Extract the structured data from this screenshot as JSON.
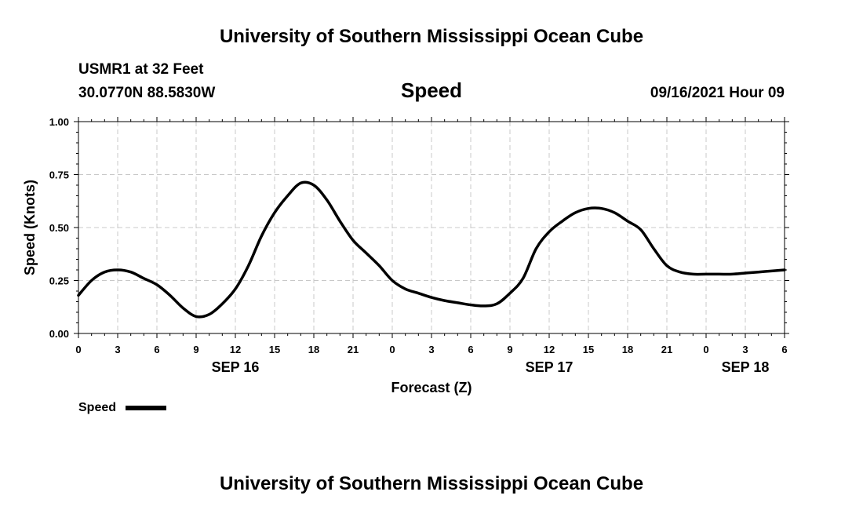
{
  "page": {
    "title_top": "University of Southern Mississippi Ocean Cube",
    "title_bottom": "University of Southern Mississippi Ocean Cube",
    "station": "USMR1 at 32 Feet",
    "location": "30.0770N  88.5830W",
    "variable": "Speed",
    "issued": "09/16/2021 Hour 09"
  },
  "chart_data": {
    "type": "line",
    "ylabel": "Speed (Knots)",
    "xlabel": "Forecast (Z)",
    "ylim": [
      0,
      1
    ],
    "xlim": [
      0,
      54
    ],
    "x_units": "forecast hours from SEP 16 00Z",
    "yticks": [
      "0.00",
      "0.25",
      "0.50",
      "0.75",
      "1.00"
    ],
    "xticks": [
      "0",
      "3",
      "6",
      "9",
      "12",
      "15",
      "18",
      "21",
      "0",
      "3",
      "6",
      "9",
      "12",
      "15",
      "18",
      "21",
      "0",
      "3",
      "6"
    ],
    "date_labels": [
      {
        "label": "SEP 16",
        "x": 12
      },
      {
        "label": "SEP 17",
        "x": 36
      },
      {
        "label": "SEP 18",
        "x": 51
      }
    ],
    "grid": true,
    "legend": {
      "position": "bottom-left"
    },
    "series": [
      {
        "name": "Speed",
        "color": "#000000",
        "x": [
          0,
          1,
          2,
          3,
          4,
          5,
          6,
          7,
          8,
          9,
          10,
          11,
          12,
          13,
          14,
          15,
          16,
          17,
          18,
          19,
          20,
          21,
          22,
          23,
          24,
          25,
          26,
          27,
          28,
          29,
          30,
          31,
          32,
          33,
          34,
          35,
          36,
          37,
          38,
          39,
          40,
          41,
          42,
          43,
          44,
          45,
          46,
          47,
          48,
          49,
          50,
          51,
          52,
          53,
          54
        ],
        "y": [
          0.18,
          0.25,
          0.29,
          0.3,
          0.29,
          0.26,
          0.23,
          0.18,
          0.12,
          0.08,
          0.09,
          0.14,
          0.21,
          0.32,
          0.46,
          0.57,
          0.65,
          0.71,
          0.7,
          0.63,
          0.53,
          0.44,
          0.38,
          0.32,
          0.25,
          0.21,
          0.19,
          0.17,
          0.155,
          0.145,
          0.135,
          0.13,
          0.14,
          0.19,
          0.26,
          0.4,
          0.48,
          0.53,
          0.57,
          0.59,
          0.59,
          0.57,
          0.53,
          0.49,
          0.4,
          0.32,
          0.29,
          0.28,
          0.28,
          0.28,
          0.28,
          0.285,
          0.29,
          0.295,
          0.3
        ]
      }
    ]
  }
}
